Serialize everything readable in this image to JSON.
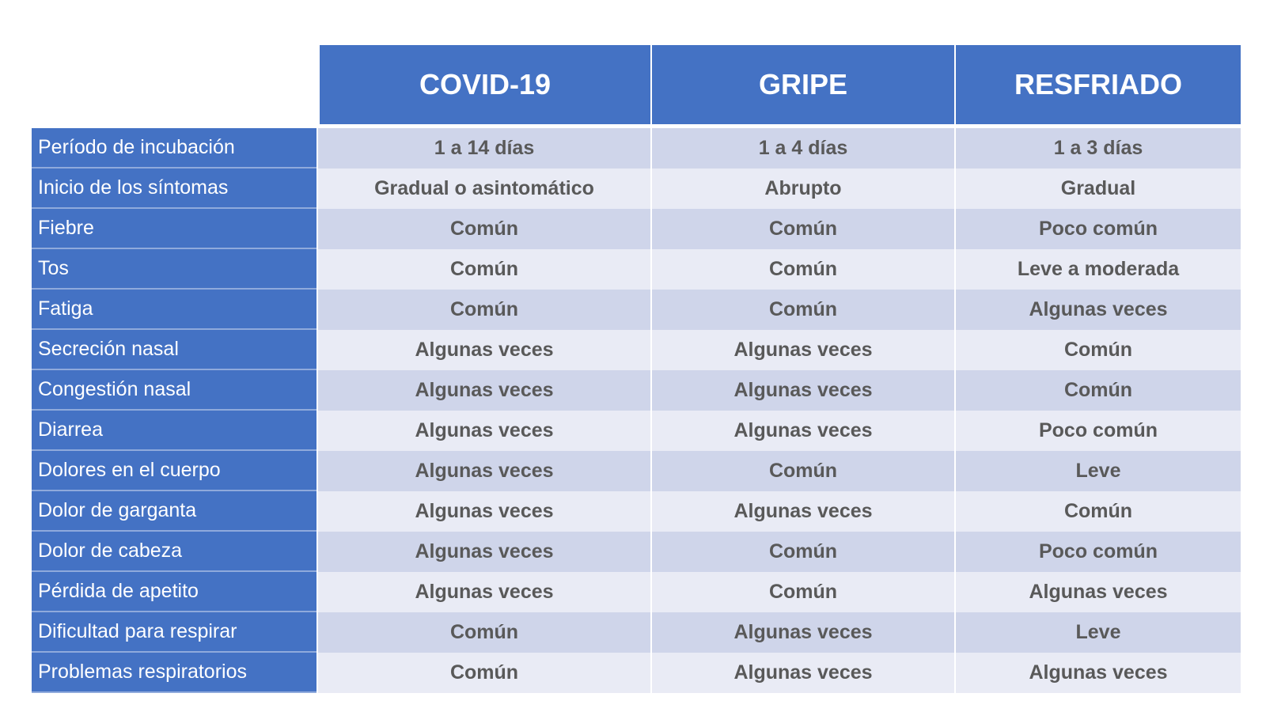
{
  "table": {
    "headers": [
      "COVID-19",
      "GRIPE",
      "RESFRIADO"
    ],
    "colors": {
      "header_bg": "#4472c4",
      "header_text": "#ffffff",
      "row_odd_bg": "#cfd5ea",
      "row_even_bg": "#e9ebf5",
      "value_text": "#595959"
    },
    "rows": [
      {
        "label": "Período de incubación",
        "values": [
          "1 a 14 días",
          "1 a 4 días",
          "1 a 3 días"
        ]
      },
      {
        "label": "Inicio de los síntomas",
        "values": [
          "Gradual  o asintomático",
          "Abrupto",
          "Gradual"
        ]
      },
      {
        "label": "Fiebre",
        "values": [
          "Común",
          "Común",
          "Poco común"
        ]
      },
      {
        "label": "Tos",
        "values": [
          "Común",
          "Común",
          "Leve a moderada"
        ]
      },
      {
        "label": "Fatiga",
        "values": [
          "Común",
          "Común",
          "Algunas veces"
        ]
      },
      {
        "label": "Secreción nasal",
        "values": [
          "Algunas veces",
          "Algunas veces",
          "Común"
        ]
      },
      {
        "label": "Congestión nasal",
        "values": [
          "Algunas veces",
          "Algunas veces",
          "Común"
        ]
      },
      {
        "label": "Diarrea",
        "values": [
          "Algunas veces",
          "Algunas veces",
          "Poco común"
        ]
      },
      {
        "label": "Dolores en el cuerpo",
        "values": [
          "Algunas veces",
          "Común",
          "Leve"
        ]
      },
      {
        "label": "Dolor de garganta",
        "values": [
          "Algunas veces",
          "Algunas veces",
          "Común"
        ]
      },
      {
        "label": "Dolor de cabeza",
        "values": [
          "Algunas veces",
          "Común",
          "Poco común"
        ]
      },
      {
        "label": "Pérdida de apetito",
        "values": [
          "Algunas veces",
          "Común",
          "Algunas veces"
        ]
      },
      {
        "label": "Dificultad para respirar",
        "values": [
          "Común",
          "Algunas veces",
          "Leve"
        ]
      },
      {
        "label": "Problemas respiratorios",
        "values": [
          "Común",
          "Algunas veces",
          "Algunas veces"
        ]
      }
    ]
  }
}
